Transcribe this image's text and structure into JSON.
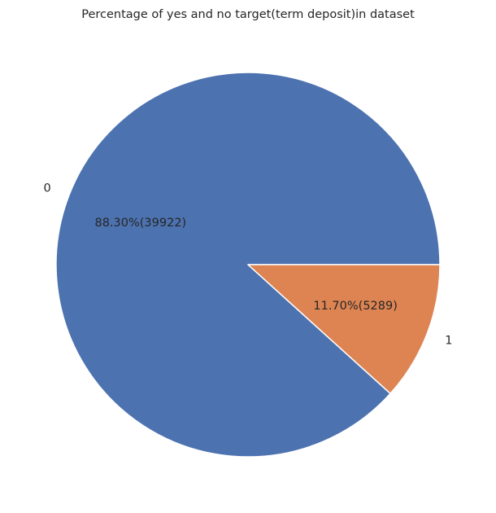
{
  "chart_data": {
    "type": "pie",
    "title": "Percentage of yes and no target(term deposit)in dataset",
    "categories": [
      "0",
      "1"
    ],
    "values": [
      39922,
      5289
    ],
    "percent_labels": [
      "88.30%(39922)",
      "11.70%(5289)"
    ],
    "colors": [
      "#4c72b0",
      "#dd8452"
    ],
    "start_angle_deg": 0,
    "direction": "counterclockwise",
    "legend": "none"
  }
}
